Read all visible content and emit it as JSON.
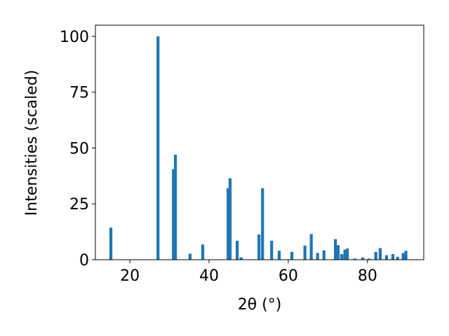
{
  "chart_data": {
    "type": "bar",
    "x_label": "2θ (°)",
    "y_label": "Intensities (scaled)",
    "x": [
      15.2,
      27.1,
      31.0,
      31.5,
      35.2,
      38.4,
      44.8,
      45.3,
      47.1,
      48.1,
      52.6,
      53.5,
      55.8,
      57.7,
      60.9,
      64.2,
      65.8,
      67.4,
      69.0,
      71.9,
      72.6,
      73.5,
      74.3,
      74.9,
      76.8,
      78.8,
      80.4,
      82.1,
      83.2,
      84.8,
      86.4,
      87.6,
      89.0,
      89.7
    ],
    "values": [
      14.4,
      100,
      40.5,
      47,
      2.7,
      6.8,
      32,
      36.5,
      8.5,
      1,
      11.3,
      32,
      8.5,
      4,
      3.5,
      6.3,
      11.5,
      3,
      4.2,
      9.2,
      6.5,
      2.5,
      4.5,
      5,
      0.5,
      1,
      0.5,
      3.5,
      5.2,
      2,
      2.5,
      1.3,
      3,
      4
    ],
    "bar_width": 0.75,
    "color": "#1f77b4",
    "xlim": [
      11.3,
      94.2
    ],
    "xticks": [
      20,
      40,
      60,
      80
    ],
    "ylim": [
      0,
      105
    ],
    "yticks": [
      0,
      25,
      50,
      75,
      100
    ]
  }
}
